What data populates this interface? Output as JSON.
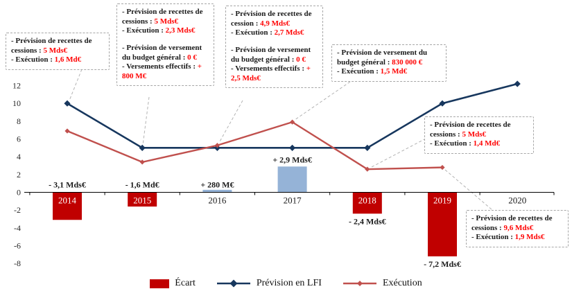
{
  "chart_data": {
    "type": "combo-bar-line",
    "title": "",
    "categories": [
      "2014",
      "2015",
      "2016",
      "2017",
      "2018",
      "2019",
      "2020"
    ],
    "y_ticks": [
      12,
      10,
      8,
      6,
      4,
      2,
      0,
      -2,
      -4,
      -6,
      -8
    ],
    "ylim": [
      -8,
      12
    ],
    "value_unit": "Mds€",
    "grid": false,
    "legend_position": "bottom",
    "bar_series": {
      "name": "Écart",
      "values": [
        -3.1,
        -1.6,
        0.28,
        2.9,
        -2.4,
        -7.2,
        null
      ],
      "labels": [
        "- 3,1 Mds€",
        "- 1,6 Md€",
        "+ 280 M€",
        "+ 2,9 Mds€",
        "- 2,4 Mds€",
        "- 7,2 Mds€",
        ""
      ],
      "label_positions": [
        "axis",
        "axis",
        "axis",
        "above",
        "below",
        "below",
        ""
      ],
      "negative_color": "#C00000",
      "positive_color": "#95B3D7"
    },
    "line_series": [
      {
        "name": "Prévision en LFI",
        "color": "#17375E",
        "values": [
          10,
          5,
          5,
          5,
          5,
          10,
          12.2
        ]
      },
      {
        "name": "Exécution",
        "color": "#C0504D",
        "values": [
          6.9,
          3.4,
          5.28,
          7.9,
          2.6,
          2.8,
          null
        ]
      }
    ]
  },
  "callouts": [
    {
      "year": "2014",
      "groups": [
        [
          {
            "label": "- Prévision de recettes de cessions : ",
            "value": "5 Mds€"
          },
          {
            "label": "- Exécution : ",
            "value": "1,6 Md€"
          }
        ]
      ]
    },
    {
      "year": "2015",
      "groups": [
        [
          {
            "label": "- Prévision de recettes de cessions : ",
            "value": "5 Mds€"
          },
          {
            "label": "- Exécution : ",
            "value": "2,3 Mds€"
          }
        ],
        [
          {
            "label": "- Prévision de versement du budget général : ",
            "value": "0 €"
          },
          {
            "label": "- Versements effectifs : ",
            "value": "+ 800 M€"
          }
        ]
      ]
    },
    {
      "year": "2016",
      "groups": [
        [
          {
            "label": "- Prévision de recettes de cession : ",
            "value": "4,9 Mds€"
          },
          {
            "label": "- Exécution : ",
            "value": "2,7 Mds€"
          }
        ],
        [
          {
            "label": "- Prévision de versement du budget général : ",
            "value": "0 €"
          },
          {
            "label": "- Versements effectifs : ",
            "value": "+ 2,5 Mds€"
          }
        ]
      ]
    },
    {
      "year": "2017",
      "groups": [
        [
          {
            "label": "- Prévision de versement du budget général : ",
            "value": "830 000 €"
          },
          {
            "label": "- Exécution : ",
            "value": "1,5 Md€"
          }
        ]
      ]
    },
    {
      "year": "2018",
      "groups": [
        [
          {
            "label": "- Prévision de recettes de cessions : ",
            "value": "5 Mds€"
          },
          {
            "label": "- Exécution : ",
            "value": "1,4 Md€"
          }
        ]
      ]
    },
    {
      "year": "2020",
      "groups": [
        [
          {
            "label": "- Prévision de recettes de cessions : ",
            "value": "9,6 Mds€"
          },
          {
            "label": "- Exécution : ",
            "value": "1,9 Mds€"
          }
        ]
      ]
    }
  ],
  "legend": {
    "items": [
      {
        "label": "Écart"
      },
      {
        "label": "Prévision en LFI"
      },
      {
        "label": "Exécution"
      }
    ]
  }
}
